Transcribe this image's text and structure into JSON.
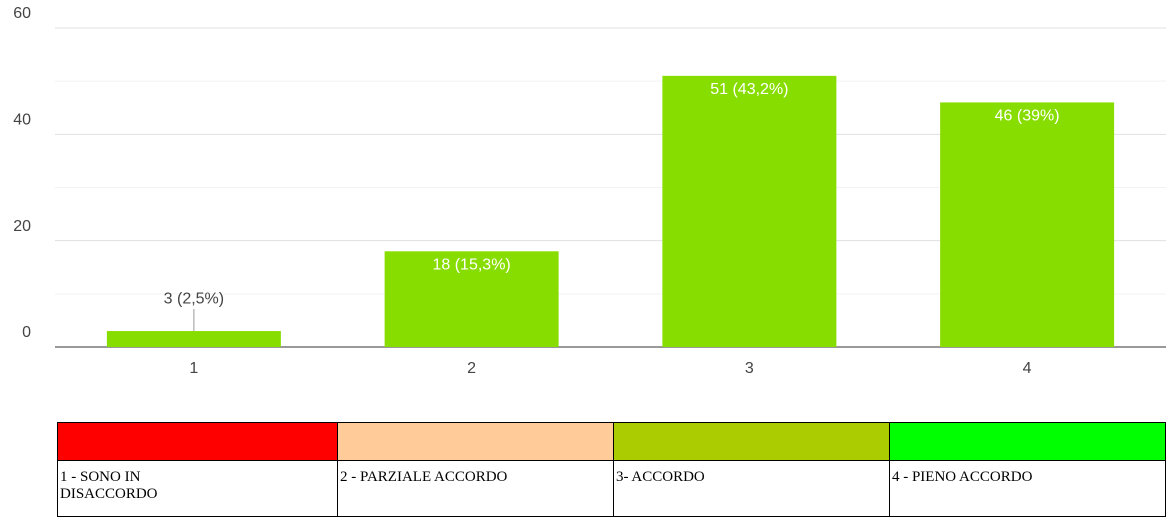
{
  "chart_data": {
    "type": "bar",
    "categories": [
      "1",
      "2",
      "3",
      "4"
    ],
    "values": [
      3,
      18,
      51,
      46
    ],
    "value_labels": [
      "3 (2,5%)",
      "18 (15,3%)",
      "51 (43,2%)",
      "46 (39%)"
    ],
    "color": "#88dd00",
    "ylim": [
      0,
      60
    ],
    "yticks": [
      0,
      20,
      40,
      60
    ],
    "minor_yticks": [
      10,
      30,
      50
    ],
    "grid": true
  },
  "legend_table": {
    "colors": [
      "#ff0000",
      "#ffcc99",
      "#aacc00",
      "#00ff00"
    ],
    "labels": [
      "1 - SONO IN DISACCORDO",
      "2 - PARZIALE ACCORDO",
      "3- ACCORDO",
      "4 - PIENO ACCORDO"
    ]
  }
}
